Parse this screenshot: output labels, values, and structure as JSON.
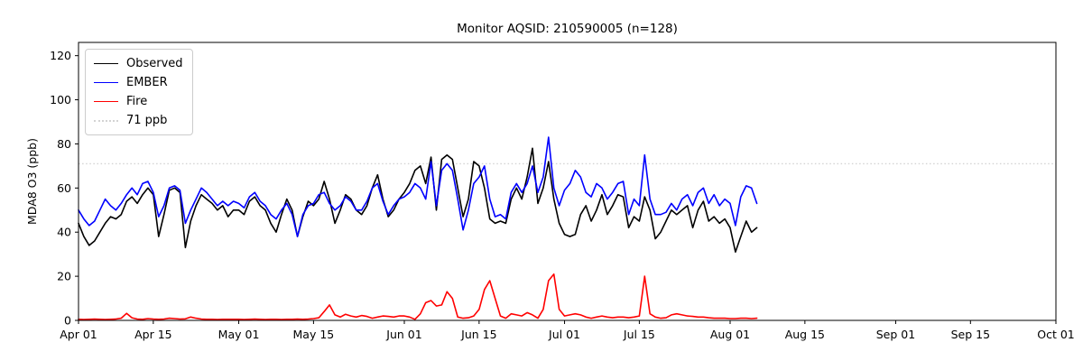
{
  "title": "Monitor AQSID: 210590005 (n=128)",
  "legend": {
    "items": [
      {
        "label": "Observed",
        "color": "#000000",
        "style": "solid"
      },
      {
        "label": "EMBER",
        "color": "#0000ff",
        "style": "solid"
      },
      {
        "label": "Fire",
        "color": "#ff0000",
        "style": "solid"
      },
      {
        "label": "71 ppb",
        "color": "#d3d3d3",
        "style": "dotted"
      }
    ]
  },
  "chart_data": {
    "type": "line",
    "title": "Monitor AQSID: 210590005 (n=128)",
    "xlabel": "",
    "ylabel": "MDA8 O3 (ppb)",
    "n_points": 128,
    "start_date": "Apr 01",
    "end_date": "Aug 06",
    "x_axis_span_days": 183,
    "ylim": [
      0,
      126
    ],
    "yticks": [
      0,
      20,
      40,
      60,
      80,
      100,
      120
    ],
    "xtick_labels": [
      "Apr 01",
      "Apr 15",
      "May 01",
      "May 15",
      "Jun 01",
      "Jun 15",
      "Jul 01",
      "Jul 15",
      "Aug 01",
      "Aug 15",
      "Sep 01",
      "Sep 15",
      "Oct 01"
    ],
    "xtick_days": [
      0,
      14,
      30,
      44,
      61,
      75,
      91,
      105,
      122,
      136,
      153,
      167,
      183
    ],
    "grid": false,
    "legend_position": "upper-left",
    "threshold": {
      "label": "71 ppb",
      "value": 71,
      "color": "#d3d3d3",
      "style": "dotted"
    },
    "series": [
      {
        "name": "Observed",
        "color": "#000000",
        "values": [
          44,
          38,
          34,
          36,
          40,
          44,
          47,
          46,
          48,
          54,
          56,
          53,
          57,
          60,
          57,
          38,
          48,
          59,
          60,
          58,
          33,
          45,
          52,
          57,
          55,
          53,
          50,
          52,
          47,
          50,
          50,
          48,
          54,
          56,
          52,
          50,
          44,
          40,
          48,
          55,
          50,
          38,
          47,
          54,
          52,
          55,
          63,
          55,
          44,
          50,
          57,
          55,
          50,
          48,
          52,
          60,
          66,
          55,
          47,
          50,
          55,
          58,
          62,
          68,
          70,
          62,
          74,
          50,
          73,
          75,
          73,
          60,
          47,
          55,
          72,
          70,
          60,
          46,
          44,
          45,
          44,
          55,
          60,
          55,
          65,
          78,
          53,
          60,
          72,
          55,
          44,
          39,
          38,
          39,
          48,
          52,
          45,
          50,
          57,
          48,
          52,
          57,
          56,
          42,
          47,
          45,
          56,
          50,
          37,
          40,
          45,
          50,
          48,
          50,
          52,
          42,
          50,
          54,
          45,
          47,
          44,
          46,
          42,
          31,
          38,
          45,
          40,
          42
        ]
      },
      {
        "name": "EMBER",
        "color": "#0000ff",
        "values": [
          50,
          46,
          43,
          45,
          50,
          55,
          52,
          50,
          53,
          57,
          60,
          57,
          62,
          63,
          58,
          47,
          52,
          60,
          61,
          59,
          44,
          50,
          55,
          60,
          58,
          55,
          52,
          54,
          52,
          54,
          53,
          51,
          56,
          58,
          54,
          52,
          48,
          46,
          50,
          53,
          48,
          38,
          48,
          52,
          53,
          57,
          58,
          53,
          50,
          52,
          56,
          54,
          50,
          50,
          54,
          60,
          62,
          54,
          48,
          52,
          55,
          56,
          58,
          62,
          60,
          55,
          72,
          52,
          68,
          71,
          68,
          55,
          41,
          50,
          62,
          65,
          70,
          55,
          47,
          48,
          46,
          58,
          62,
          58,
          62,
          70,
          58,
          65,
          83,
          60,
          52,
          59,
          62,
          68,
          65,
          58,
          56,
          62,
          60,
          55,
          58,
          62,
          63,
          48,
          55,
          52,
          75,
          55,
          48,
          48,
          49,
          53,
          50,
          55,
          57,
          52,
          58,
          60,
          53,
          57,
          52,
          55,
          53,
          43,
          56,
          61,
          60,
          53
        ]
      },
      {
        "name": "Fire",
        "color": "#ff0000",
        "values": [
          0.5,
          0.4,
          0.5,
          0.6,
          0.5,
          0.4,
          0.5,
          0.6,
          1.0,
          3.2,
          1.2,
          0.6,
          0.5,
          0.8,
          0.6,
          0.5,
          0.6,
          1.0,
          0.8,
          0.6,
          0.7,
          1.5,
          1.0,
          0.6,
          0.5,
          0.5,
          0.4,
          0.5,
          0.5,
          0.5,
          0.5,
          0.4,
          0.5,
          0.6,
          0.5,
          0.4,
          0.5,
          0.5,
          0.4,
          0.5,
          0.5,
          0.6,
          0.5,
          0.6,
          0.8,
          1.2,
          4.0,
          7.0,
          2.5,
          1.5,
          2.8,
          2.0,
          1.5,
          2.2,
          1.8,
          1.0,
          1.5,
          2.0,
          1.8,
          1.5,
          2.0,
          2.0,
          1.5,
          0.5,
          3.0,
          8.0,
          9.0,
          6.5,
          7.0,
          13.0,
          10.0,
          1.5,
          1.0,
          1.2,
          2.0,
          5.0,
          14.0,
          18.0,
          10.0,
          2.0,
          1.0,
          3.0,
          2.5,
          2.0,
          3.5,
          2.5,
          1.0,
          5.0,
          18.0,
          21.0,
          5.0,
          2.0,
          2.5,
          3.0,
          2.5,
          1.5,
          1.0,
          1.5,
          2.0,
          1.5,
          1.2,
          1.5,
          1.5,
          1.2,
          1.5,
          2.0,
          20.0,
          3.0,
          1.5,
          1.0,
          1.2,
          2.5,
          3.0,
          2.5,
          2.0,
          1.8,
          1.5,
          1.5,
          1.2,
          1.0,
          1.0,
          1.0,
          0.8,
          0.8,
          1.0,
          1.0,
          0.8,
          1.0
        ]
      }
    ]
  }
}
